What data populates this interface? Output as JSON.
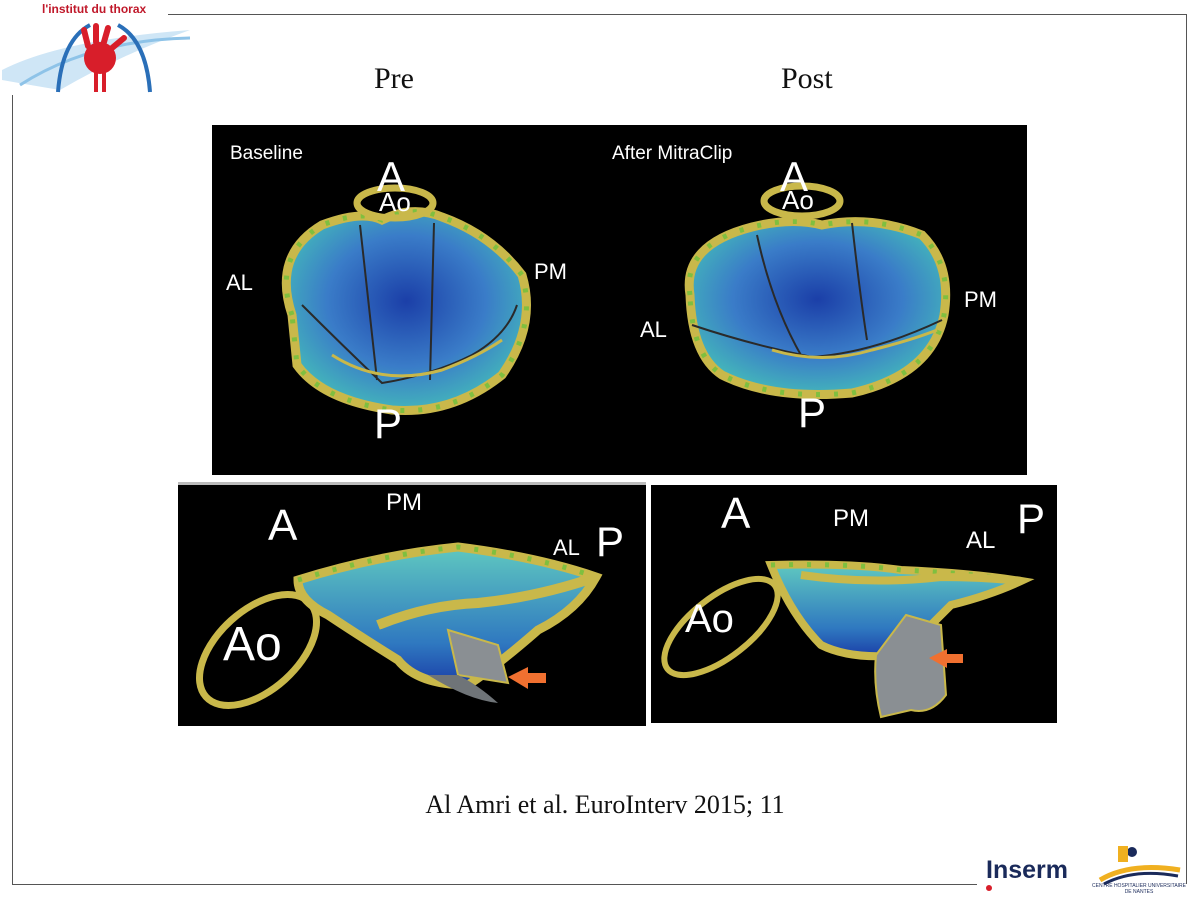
{
  "header": {
    "institute_logo_text": "l'institut du thorax"
  },
  "columns": {
    "pre": "Pre",
    "post": "Post"
  },
  "top_panel": {
    "left_caption": "Baseline",
    "right_caption": "After MitraClip",
    "left_labels": {
      "a": "A",
      "ao": "Ao",
      "al": "AL",
      "pm": "PM",
      "p": "P"
    },
    "right_labels": {
      "a": "A",
      "ao": "Ao",
      "al": "AL",
      "pm": "PM",
      "p": "P"
    }
  },
  "bottom_left_panel": {
    "labels": {
      "a": "A",
      "pm": "PM",
      "al": "AL",
      "p": "P",
      "ao": "Ao"
    }
  },
  "bottom_right_panel": {
    "labels": {
      "a": "A",
      "pm": "PM",
      "al": "AL",
      "p": "P",
      "ao": "Ao"
    }
  },
  "citation": "Al Amri et al. EuroInterv 2015; 11",
  "footer": {
    "inserm_logo_text": "Inserm",
    "chu_logo_text": "CENTRE HOSPITALIER UNIVERSITAIRE DE NANTES"
  },
  "colors": {
    "annulus": "#c9b84a",
    "annulus_dash": "#7fbf3f",
    "arrow": "#f07030",
    "leaflet_blue": "#1b3fa8",
    "leaflet_teal": "#40b8c0"
  }
}
